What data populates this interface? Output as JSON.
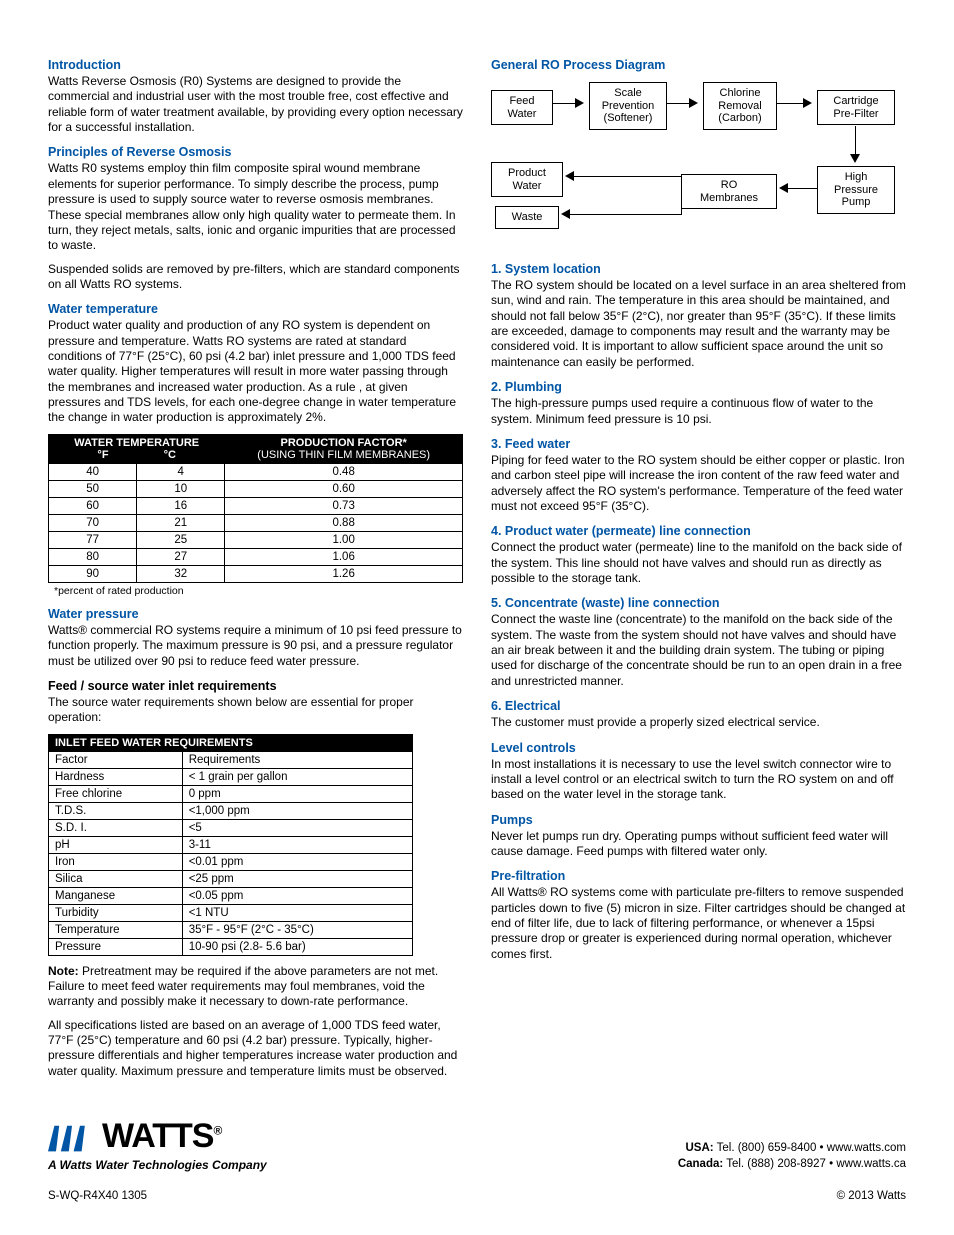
{
  "left": {
    "intro_h": "Introduction",
    "intro_p": "Watts Reverse Osmosis (R0) Systems are designed to provide the commercial and industrial user with the most trouble free, cost effective and reliable form of water treatment available, by providing every option necessary for a successful installation.",
    "principles_h": "Principles of Reverse Osmosis",
    "principles_p1": "Watts R0 systems employ thin film composite spiral wound membrane elements for superior performance. To simply describe the process, pump pressure is used to supply source water to reverse osmosis membranes. These special membranes allow only high quality water to permeate them. In turn, they reject metals, salts, ionic and organic impurities that are processed to waste.",
    "principles_p2": "Suspended solids are removed by pre-filters, which are standard components on all Watts RO systems.",
    "temp_h": "Water temperature",
    "temp_p": "Product water quality and production of any RO system is dependent on pressure and temperature. Watts RO systems are rated at standard conditions of 77°F (25°C), 60 psi (4.2 bar) inlet pressure and 1,000 TDS feed water quality. Higher temperatures will result in more water passing through the membranes and increased water production. As a rule , at given pressures and TDS levels, for each one-degree change in water temperature the change in water production is approximately 2%.",
    "temp_table": {
      "h1a": "WATER TEMPERATURE",
      "h1b": "PRODUCTION FACTOR*",
      "h2a": "°F",
      "h2b": "°C",
      "h2c": "(USING THIN FILM MEMBRANES)",
      "rows": [
        [
          "40",
          "4",
          "0.48"
        ],
        [
          "50",
          "10",
          "0.60"
        ],
        [
          "60",
          "16",
          "0.73"
        ],
        [
          "70",
          "21",
          "0.88"
        ],
        [
          "77",
          "25",
          "1.00"
        ],
        [
          "80",
          "27",
          "1.06"
        ],
        [
          "90",
          "32",
          "1.26"
        ]
      ],
      "foot": "*percent of rated production"
    },
    "press_h": "Water pressure",
    "press_p": "Watts® commercial RO systems require a minimum of 10 psi feed pressure to function properly. The maximum pressure is 90 psi, and a pressure regulator must be utilized over 90 psi to reduce feed water pressure.",
    "feed_h": "Feed / source water inlet requirements",
    "feed_p": "The source water requirements shown below are essential for proper operation:",
    "req_table": {
      "header": "INLET FEED WATER REQUIREMENTS",
      "cols": [
        "Factor",
        "Requirements"
      ],
      "rows": [
        [
          "Hardness",
          "< 1 grain per gallon"
        ],
        [
          "Free chlorine",
          "0 ppm"
        ],
        [
          "T.D.S.",
          "<1,000 ppm"
        ],
        [
          "S.D. I.",
          "<5"
        ],
        [
          "pH",
          "3-11"
        ],
        [
          "Iron",
          "<0.01 ppm"
        ],
        [
          "Silica",
          "<25 ppm"
        ],
        [
          "Manganese",
          "<0.05 ppm"
        ],
        [
          "Turbidity",
          "<1 NTU"
        ],
        [
          "Temperature",
          "35°F - 95°F (2°C - 35°C)"
        ],
        [
          "Pressure",
          "10-90 psi (2.8- 5.6 bar)"
        ]
      ]
    },
    "note_label": "Note:",
    "note_p": " Pretreatment may be required if the above parameters are not met. Failure to meet feed water requirements may foul membranes, void the warranty and possibly make it necessary to down-rate performance.",
    "spec_p": "All specifications listed are based on an average of 1,000 TDS feed water, 77°F (25°C) temperature and 60 psi (4.2 bar) pressure. Typically, higher-pressure differentials and higher temperatures increase water production and water quality. Maximum pressure and temperature limits must be observed."
  },
  "right": {
    "diag_h": "General RO Process Diagram",
    "nodes": {
      "feed": "Feed\nWater",
      "softener": "Scale\nPrevention\n(Softener)",
      "carbon": "Chlorine\nRemoval\n(Carbon)",
      "cartridge": "Cartridge\nPre-Filter",
      "pump": "High\nPressure\nPump",
      "ro": "RO\nMembranes",
      "product": "Product\nWater",
      "waste": "Waste"
    },
    "s1_h": "1. System location",
    "s1_p": "The RO system should be located on a level surface in an area sheltered from sun, wind and rain. The temperature in this area should be maintained, and should not fall below 35°F (2°C), nor greater than 95°F (35°C). If these limits are exceeded, damage to components may result and the warranty may be considered void. It is important to allow sufficient space around the unit so maintenance can easily be performed.",
    "s2_h": "2. Plumbing",
    "s2_p": "The high-pressure pumps used require a continuous flow of water to the system. Minimum feed pressure is 10 psi.",
    "s3_h": "3. Feed water",
    "s3_p": "Piping for feed water to the RO system should be either copper or plastic. Iron and carbon steel pipe will increase the iron content of the raw feed water and adversely affect the RO system's performance. Temperature of the feed water must not exceed 95°F (35°C).",
    "s4_h": "4. Product water (permeate) line connection",
    "s4_p": "Connect the product water (permeate) line to the manifold on the back side of the system. This line should not have valves and should run as directly as possible to the storage tank.",
    "s5_h": "5. Concentrate (waste) line connection",
    "s5_p": "Connect the waste line (concentrate) to the manifold on the back side of the system. The waste from the system should not have valves and should have an air break between it and the building drain system. The tubing or piping used for discharge of the concentrate should be run to an open drain in a free and unrestricted manner.",
    "s6_h": "6. Electrical",
    "s6_p": "The customer must provide a properly sized electrical service.",
    "lvl_h": "Level controls",
    "lvl_p": "In most installations it is necessary to use the level switch connector wire to install a level control or an electrical switch to turn the RO system on and off based on the water level in the storage tank.",
    "pmp_h": "Pumps",
    "pmp_p": "Never let pumps run dry. Operating pumps without sufficient feed water will cause damage. Feed pumps with filtered water only.",
    "pre_h": "Pre-filtration",
    "pre_p": "All Watts® RO systems come with particulate pre-filters to remove suspended particles down to five (5) micron in size. Filter cartridges should be changed at end of filter life, due to lack of filtering performance, or whenever a 15psi pressure drop or greater is experienced during normal operation, whichever comes first."
  },
  "footer": {
    "logo": "WATTS",
    "reg": "®",
    "tagline": "A Watts Water Technologies Company",
    "usa_label": "USA:",
    "usa": "  Tel. (800) 659-8400 • www.watts.com",
    "can_label": "Canada:",
    "can": "  Tel. (888) 208-8927 • www.watts.ca",
    "doc": "S-WQ-R4X40  1305",
    "copy": "© 2013 Watts"
  }
}
